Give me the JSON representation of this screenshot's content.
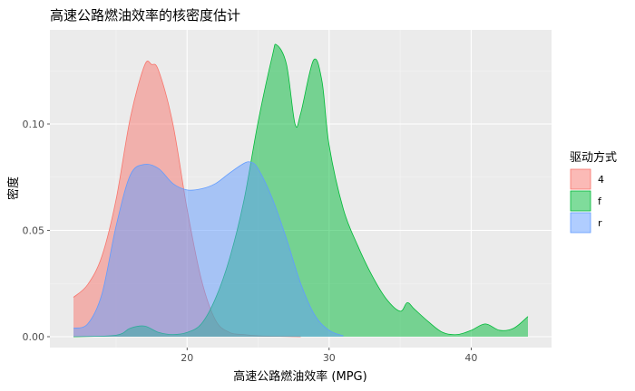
{
  "chart_data": {
    "type": "area",
    "title": "高速公路燃油效率的核密度估计",
    "xlabel": "高速公路燃油效率 (MPG)",
    "ylabel": "密度",
    "xlim": [
      12,
      44
    ],
    "ylim": [
      0,
      0.1383
    ],
    "x_ticks": [
      20,
      30,
      40
    ],
    "y_ticks": [
      0.0,
      0.05,
      0.1
    ],
    "x_tick_labels": [
      "20",
      "30",
      "40"
    ],
    "y_tick_labels": [
      "0.00",
      "0.05",
      "0.10"
    ],
    "grid": true,
    "legend": {
      "title": "驱动方式",
      "placement": "right"
    },
    "series": [
      {
        "name": "4",
        "color": "#F8766D",
        "x": [
          12,
          13,
          14,
          15,
          16,
          17,
          17.5,
          18,
          19,
          20,
          21,
          22,
          23,
          24,
          25,
          26,
          27,
          28
        ],
        "values": [
          0.0185,
          0.0245,
          0.0378,
          0.0645,
          0.1028,
          0.1275,
          0.128,
          0.125,
          0.1,
          0.06,
          0.027,
          0.0078,
          0.002,
          0.001,
          0.0004,
          0.0002,
          0.0001,
          0.0
        ]
      },
      {
        "name": "f",
        "color": "#00BA38",
        "x": [
          12,
          15,
          16,
          17,
          18,
          19,
          20,
          21,
          22,
          23,
          24,
          25,
          26,
          26.3,
          27,
          27.6,
          28,
          28.9,
          29.5,
          30,
          31,
          32,
          33,
          34,
          35,
          35.5,
          36,
          37,
          38,
          39,
          40,
          41,
          42,
          43,
          44
        ],
        "values": [
          0.0,
          0.0007,
          0.004,
          0.005,
          0.002,
          0.001,
          0.002,
          0.006,
          0.018,
          0.037,
          0.064,
          0.101,
          0.132,
          0.1372,
          0.128,
          0.1,
          0.105,
          0.13,
          0.12,
          0.09,
          0.06,
          0.043,
          0.029,
          0.018,
          0.012,
          0.016,
          0.013,
          0.007,
          0.002,
          0.001,
          0.003,
          0.006,
          0.003,
          0.004,
          0.0095
        ]
      },
      {
        "name": "r",
        "color": "#619CFF",
        "x": [
          12,
          13,
          14,
          15,
          16,
          17,
          18,
          19,
          20,
          21,
          22,
          23,
          24,
          24.5,
          25,
          26,
          27,
          28,
          29,
          30,
          31
        ],
        "values": [
          0.004,
          0.006,
          0.02,
          0.052,
          0.076,
          0.081,
          0.079,
          0.072,
          0.069,
          0.0695,
          0.072,
          0.077,
          0.0815,
          0.082,
          0.079,
          0.065,
          0.046,
          0.025,
          0.01,
          0.003,
          0.0004
        ]
      }
    ]
  }
}
